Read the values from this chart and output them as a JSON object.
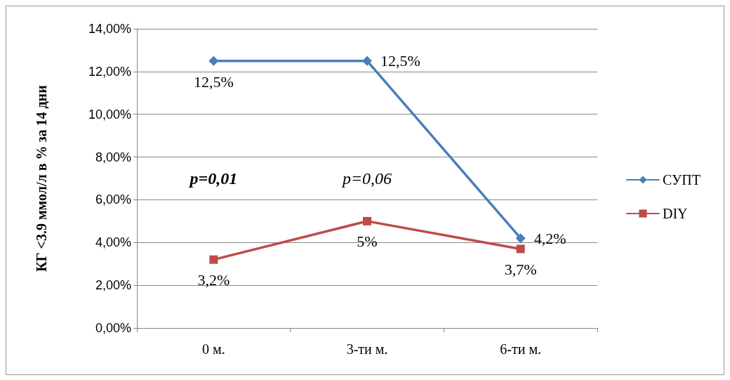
{
  "chart_data": {
    "type": "line",
    "ylabel": "КГ <3.9 ммол/л в % за 14 дни",
    "categories": [
      "0 м.",
      "3-ти м.",
      "6-ти м."
    ],
    "series": [
      {
        "name": "СУПТ",
        "color": "#4a7ebb",
        "marker": "diamond",
        "values": [
          12.5,
          12.5,
          4.2
        ],
        "value_labels": [
          "12,5%",
          "12,5%",
          "4,2%"
        ]
      },
      {
        "name": "DIY",
        "color": "#be4b48",
        "marker": "square",
        "values": [
          3.2,
          5,
          3.7
        ],
        "value_labels": [
          "3,2%",
          "5%",
          "3,7%"
        ]
      }
    ],
    "ylim": [
      0,
      14
    ],
    "yticks": [
      {
        "value": 0,
        "label": "0,00%"
      },
      {
        "value": 2,
        "label": "2,00%"
      },
      {
        "value": 4,
        "label": "4,00%"
      },
      {
        "value": 6,
        "label": "6,00%"
      },
      {
        "value": 8,
        "label": "8,00%"
      },
      {
        "value": 10,
        "label": "10,00%"
      },
      {
        "value": 12,
        "label": "12,00%"
      },
      {
        "value": 14,
        "label": "14,00%"
      }
    ],
    "annotations": [
      "p=0,01",
      "p=0,06"
    ],
    "grid": "y",
    "legend": "right",
    "line_style": "solid"
  }
}
